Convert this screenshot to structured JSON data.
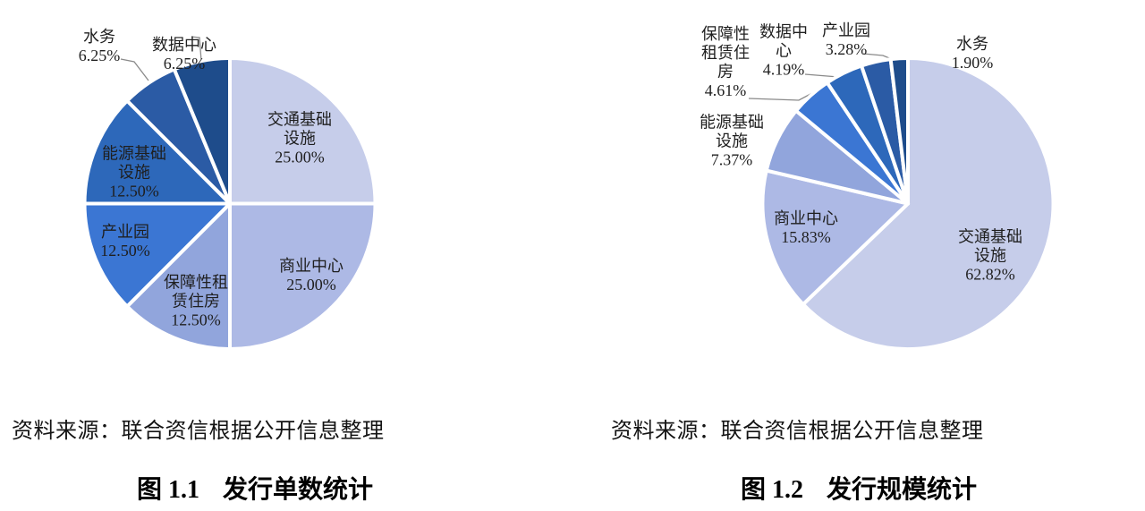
{
  "page": {
    "background": "#ffffff",
    "text_color": "#1f1f1f",
    "leader_line_color": "#8a8a8a",
    "slice_divider_color": "#ffffff"
  },
  "palette": [
    "#c6cdea",
    "#adb9e5",
    "#91a5dc",
    "#3b76d3",
    "#2d68ba",
    "#2b5ba5",
    "#1e4c8b"
  ],
  "charts": [
    {
      "source": "资料来源：联合资信根据公开信息整理",
      "caption": {
        "prefix": "图 1.1",
        "title": "发行单数统计"
      },
      "chart_data": {
        "type": "pie",
        "title": "发行单数统计",
        "unit": "percent",
        "start_angle_deg": 0,
        "direction": "clockwise",
        "legend": "none",
        "slices": [
          {
            "label": "交通基础设施",
            "label_lines": [
              "交通基础",
              "设施"
            ],
            "value": 25.0,
            "pct_label": "25.00%"
          },
          {
            "label": "商业中心",
            "label_lines": [
              "商业中心"
            ],
            "value": 25.0,
            "pct_label": "25.00%"
          },
          {
            "label": "保障性租赁住房",
            "label_lines": [
              "保障性租",
              "赁住房"
            ],
            "value": 12.5,
            "pct_label": "12.50%"
          },
          {
            "label": "产业园",
            "label_lines": [
              "产业园"
            ],
            "value": 12.5,
            "pct_label": "12.50%"
          },
          {
            "label": "能源基础设施",
            "label_lines": [
              "能源基础",
              "设施"
            ],
            "value": 12.5,
            "pct_label": "12.50%"
          },
          {
            "label": "水务",
            "label_lines": [
              "水务"
            ],
            "value": 6.25,
            "pct_label": "6.25%"
          },
          {
            "label": "数据中心",
            "label_lines": [
              "数据中心"
            ],
            "value": 6.25,
            "pct_label": "6.25%"
          }
        ]
      }
    },
    {
      "source": "资料来源：联合资信根据公开信息整理",
      "caption": {
        "prefix": "图 1.2",
        "title": "发行规模统计"
      },
      "chart_data": {
        "type": "pie",
        "title": "发行规模统计",
        "unit": "percent",
        "start_angle_deg": 0,
        "direction": "clockwise",
        "legend": "none",
        "slices": [
          {
            "label": "交通基础设施",
            "label_lines": [
              "交通基础",
              "设施"
            ],
            "value": 62.82,
            "pct_label": "62.82%"
          },
          {
            "label": "商业中心",
            "label_lines": [
              "商业中心"
            ],
            "value": 15.83,
            "pct_label": "15.83%"
          },
          {
            "label": "能源基础设施",
            "label_lines": [
              "能源基础",
              "设施"
            ],
            "value": 7.37,
            "pct_label": "7.37%"
          },
          {
            "label": "保障性租赁住房",
            "label_lines": [
              "保障性",
              "租赁住",
              "房"
            ],
            "value": 4.61,
            "pct_label": "4.61%"
          },
          {
            "label": "数据中心",
            "label_lines": [
              "数据中",
              "心"
            ],
            "value": 4.19,
            "pct_label": "4.19%"
          },
          {
            "label": "产业园",
            "label_lines": [
              "产业园"
            ],
            "value": 3.28,
            "pct_label": "3.28%"
          },
          {
            "label": "水务",
            "label_lines": [
              "水务"
            ],
            "value": 1.9,
            "pct_label": "1.90%"
          }
        ]
      }
    }
  ]
}
